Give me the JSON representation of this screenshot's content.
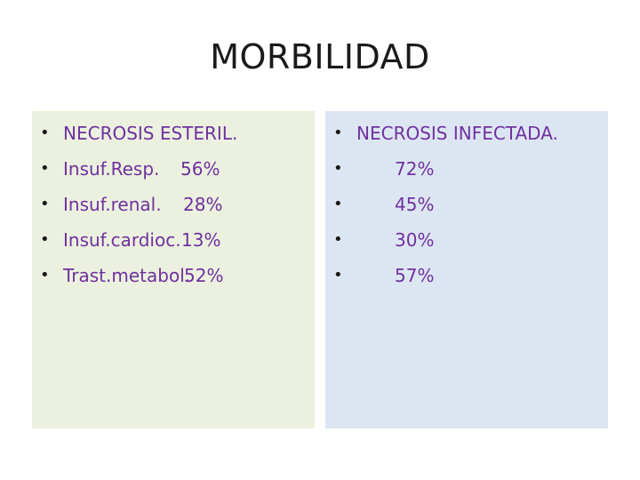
{
  "title": "MORBILIDAD",
  "left_panel": {
    "header": "NECROSIS ESTERIL.",
    "items": [
      {
        "label": "Insuf.Resp.",
        "value": "56%"
      },
      {
        "label": "Insuf.renal.",
        "value": "28%"
      },
      {
        "label": "Insuf.cardioc.",
        "value": "13%"
      },
      {
        "label": "Trast.metabol.",
        "value": "52%"
      }
    ],
    "background": "#ebf1de"
  },
  "right_panel": {
    "header": "NECROSIS INFECTADA.",
    "values": [
      "72%",
      "45%",
      "30%",
      "57%"
    ],
    "background": "#dce6f2"
  },
  "colors": {
    "text_accent": "#7030a0",
    "bullet": "#1a1a1a"
  }
}
